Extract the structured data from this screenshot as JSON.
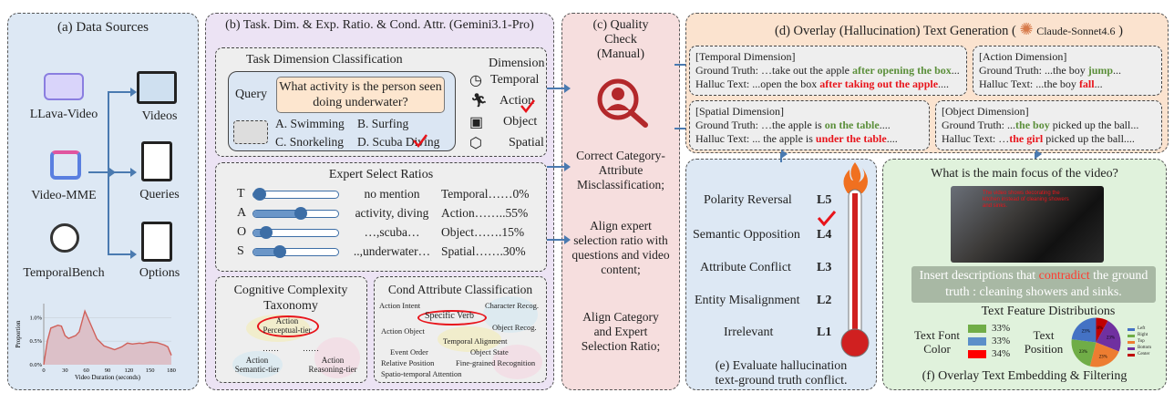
{
  "a": {
    "title": "(a) Data Sources",
    "sources": [
      "LLava-Video",
      "Video-MME",
      "TemporalBench"
    ],
    "outputs": [
      "Videos",
      "Queries",
      "Options"
    ],
    "chart_data": {
      "type": "area",
      "xlabel": "Video Duration (seconds)",
      "ylabel": "Proportion",
      "xticks": [
        "0",
        "30",
        "60",
        "90",
        "120",
        "150",
        "180"
      ],
      "yticks": [
        "0.0%",
        "0.5%",
        "1.0%"
      ],
      "xlim": [
        0,
        180
      ],
      "ylim": [
        0,
        1.3
      ],
      "grid": true,
      "x": [
        0,
        5,
        10,
        20,
        25,
        30,
        35,
        45,
        50,
        58,
        65,
        75,
        85,
        100,
        110,
        118,
        125,
        135,
        140,
        150,
        160,
        170,
        175,
        180
      ],
      "y": [
        0,
        0.5,
        0.78,
        0.84,
        0.82,
        0.62,
        0.56,
        0.62,
        0.7,
        1.14,
        0.9,
        0.55,
        0.4,
        0.32,
        0.38,
        0.46,
        0.44,
        0.46,
        0.45,
        0.48,
        0.47,
        0.42,
        0.38,
        0.2
      ],
      "color": "#d0605a"
    }
  },
  "b": {
    "title": "(b) Task. Dim. & Exp. Ratio. & Cond. Attr. (Gemini3.1-Pro)",
    "task": {
      "title": "Task Dimension Classification",
      "query_label": "Query",
      "question": "What activity is the person seen doing underwater?",
      "options": [
        "A. Swimming",
        "B. Surfing",
        "C. Snorkeling",
        "D. Scuba Diving"
      ],
      "dimension_title": "Dimension",
      "dimensions": [
        "Temporal",
        "Action",
        "Object",
        "Spatial"
      ]
    },
    "expert": {
      "title": "Expert Select Ratios",
      "rows": [
        {
          "letter": "T",
          "mention": "no mention",
          "label": "Temporal……0%",
          "ratio": 0
        },
        {
          "letter": "A",
          "mention": "activity, diving",
          "label": "Action……..55%",
          "ratio": 55
        },
        {
          "letter": "O",
          "mention": "…,scuba…",
          "label": "Object…….15%",
          "ratio": 15
        },
        {
          "letter": "S",
          "mention": "..,underwater…",
          "label": "Spatial…….30%",
          "ratio": 30
        }
      ]
    },
    "cognitive": {
      "title": "Cognitive Complexity Taxonomy",
      "perceptual": [
        "Action",
        "Perceptual-tier"
      ],
      "semantic": [
        "Action",
        "Semantic-tier"
      ],
      "reasoning": [
        "Action",
        "Reasoning-tier"
      ],
      "dots": "……"
    },
    "cond": {
      "title": "Cond Attribute Classification",
      "items": [
        "Action Intent",
        "Specific Verb",
        "Character Recog.",
        "Object Recog.",
        "Action Object",
        "Temporal Alignment",
        "Event Order",
        "Object State",
        "Relative Position",
        "Fine-grained Recognition",
        "Spatio-temporal Attention"
      ]
    }
  },
  "c": {
    "title": [
      "(c) Quality",
      "Check",
      "(Manual)"
    ],
    "steps": [
      "Correct Category-Attribute Misclassification;",
      "Align expert selection ratio with questions and video content;",
      "Align Category and Expert Selection Ratio;"
    ]
  },
  "d": {
    "title": "(d) Overlay (Hallucination) Text Generation (",
    "model": "Claude-Sonnet4.6",
    "close": ")",
    "gt": "Ground Truth:",
    "ht": "Halluc Text:",
    "temporal": {
      "head": "[Temporal Dimension]",
      "gt_pre": " …take out the apple ",
      "gt_hl": "after opening the box",
      "gt_post": "...",
      "ht_pre": " ...open the box ",
      "ht_hl": "after taking out the apple",
      "ht_post": "...."
    },
    "action": {
      "head": "[Action Dimension]",
      "gt_pre": " ...the boy ",
      "gt_hl": "jump",
      "gt_post": "...",
      "ht_pre": " ...the boy ",
      "ht_hl": "fall",
      "ht_post": "..."
    },
    "spatial": {
      "head": "[Spatial Dimension]",
      "gt_pre": " …the apple is ",
      "gt_hl": "on the table",
      "gt_post": "....",
      "ht_pre": " ... the apple is ",
      "ht_hl": "under the table",
      "ht_post": "...."
    },
    "object": {
      "head": "[Object Dimension]",
      "gt_pre": " ...",
      "gt_hl": "the boy",
      "gt_post": " picked up the ball...",
      "ht_pre": " …",
      "ht_hl": "the girl",
      "ht_post": " picked up the ball...."
    }
  },
  "e": {
    "levels": [
      {
        "name": "Polarity Reversal",
        "level": "L5"
      },
      {
        "name": "Semantic Opposition",
        "level": "L4"
      },
      {
        "name": "Attribute Conflict",
        "level": "L3"
      },
      {
        "name": "Entity Misalignment",
        "level": "L2"
      },
      {
        "name": "Irrelevant",
        "level": "L1"
      }
    ],
    "caption": [
      "(e) Evaluate hallucination",
      "text-ground truth conflict."
    ]
  },
  "f": {
    "question": "What is the main focus of the video?",
    "overlay": "The video shows decorating the kitchen instead of cleaning showers and sinks.",
    "instr_pre": "Insert descriptions that ",
    "instr_hl": "contradict",
    "instr_post": " the ground truth : cleaning showers and sinks.",
    "dist_title": "Text Feature Distributions",
    "font_color_label": "Text Font Color",
    "font_colors": [
      {
        "color": "#70ad47",
        "pct": "33%"
      },
      {
        "color": "#5b8fc9",
        "pct": "33%"
      },
      {
        "color": "#ff0000",
        "pct": "34%"
      }
    ],
    "position_label": "Text Position",
    "positions": [
      {
        "name": "Left",
        "value": 23,
        "color": "#4472c4"
      },
      {
        "name": "Right",
        "value": 23,
        "color": "#70ad47"
      },
      {
        "name": "Top",
        "value": 23,
        "color": "#ed7d31"
      },
      {
        "name": "Bottom",
        "value": 23,
        "color": "#7030a0"
      },
      {
        "name": "Center",
        "value": 8,
        "color": "#c00000"
      }
    ],
    "caption": "(f) Overlay Text Embedding & Filtering"
  }
}
